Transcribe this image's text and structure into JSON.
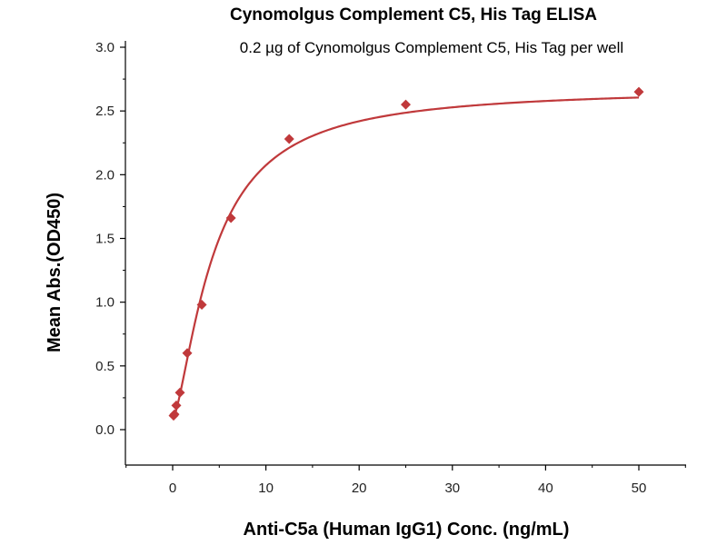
{
  "chart_data": {
    "type": "scatter",
    "title": "Cynomolgus Complement C5, His Tag ELISA",
    "subtitle": "0.2 µg of Cynomolgus Complement C5, His Tag per well",
    "xlabel": "Anti-C5a (Human IgG1) Conc. (ng/mL)",
    "ylabel": "Mean Abs.(OD450)",
    "xlim": [
      -5,
      55
    ],
    "ylim": [
      -0.25,
      3.0
    ],
    "x_ticks": [
      0,
      10,
      20,
      30,
      40,
      50
    ],
    "x_tick_labels": [
      "0",
      "10",
      "20",
      "30",
      "40",
      "50"
    ],
    "y_ticks": [
      0.0,
      0.5,
      1.0,
      1.5,
      2.0,
      2.5,
      3.0
    ],
    "y_tick_labels": [
      "0.0",
      "0.5",
      "1.0",
      "1.5",
      "2.0",
      "2.5",
      "3.0"
    ],
    "grid": false,
    "series": [
      {
        "marker": "diamond",
        "color": "#c0393b",
        "x": [
          0.098,
          0.195,
          0.391,
          0.781,
          1.563,
          3.125,
          6.25,
          12.5,
          25,
          50
        ],
        "y": [
          0.11,
          0.12,
          0.19,
          0.29,
          0.6,
          0.98,
          1.66,
          2.28,
          2.55,
          2.65
        ]
      }
    ],
    "fit_curve": {
      "color": "#c0393b",
      "model": "4PL",
      "bottom": 0.08,
      "top": 2.68,
      "ec50": 4.4,
      "hill": 1.45
    }
  }
}
